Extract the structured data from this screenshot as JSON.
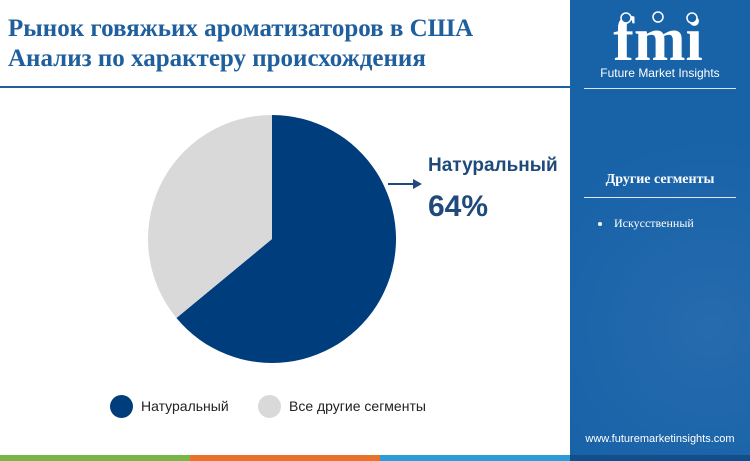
{
  "header": {
    "title_line1": "Рынок говяжьих ароматизаторов в США",
    "title_line2": "Анализ по характеру происхождения"
  },
  "brand": {
    "logo_text": "fmi",
    "name": "Future Market Insights",
    "url": "www.futuremarketinsights.com"
  },
  "sidebar": {
    "heading": "Другие сегменты",
    "items": [
      "Искусственный"
    ]
  },
  "callout": {
    "label": "Натуральный",
    "value": "64%"
  },
  "colors": {
    "primary": "#003d7c",
    "other": "#d9d9d9",
    "title": "#1f5f9e",
    "sidebar": "#1862a8"
  },
  "chart_data": {
    "type": "pie",
    "categories": [
      "Натуральный",
      "Все другие сегменты"
    ],
    "values": [
      64,
      36
    ],
    "colors": [
      "#003d7c",
      "#d9d9d9"
    ],
    "legend_position": "bottom",
    "start_angle": "12 o'clock",
    "direction": "clockwise"
  }
}
